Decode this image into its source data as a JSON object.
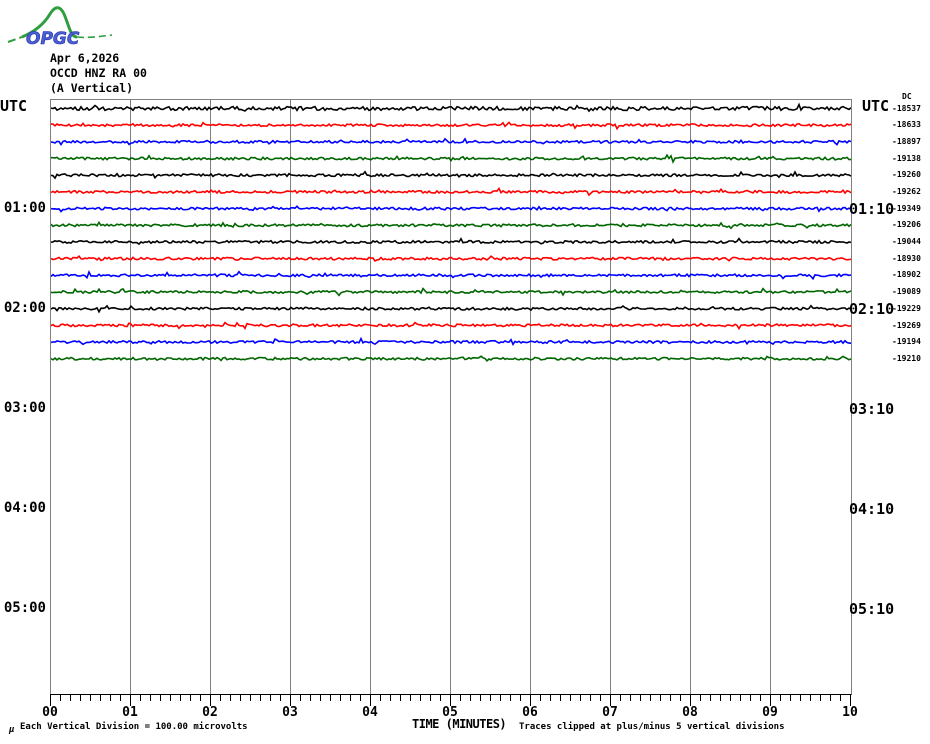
{
  "logo": {
    "text": "OPGC",
    "text_color": "#3a50cc",
    "curve_color": "#2e9e40"
  },
  "header": {
    "date": "Apr 6,2026",
    "station": "OCCD HNZ RA 00",
    "component": "(A Vertical)"
  },
  "left_axis": {
    "header": "UTC",
    "labels": [
      "01:00",
      "02:00",
      "03:00",
      "04:00",
      "05:00"
    ]
  },
  "right_axis": {
    "header": "UTC",
    "dc_label": "DC",
    "labels": [
      "01:10",
      "02:10",
      "03:10",
      "04:10",
      "05:10"
    ],
    "values": [
      "-18537",
      "-18633",
      "-18897",
      "-19138",
      "-19260",
      "-19262",
      "-19349",
      "-19206",
      "-19044",
      "-18930",
      "-18902",
      "-19089",
      "-19229",
      "-19269",
      "-19194",
      "-19210"
    ]
  },
  "x_axis": {
    "title": "TIME (MINUTES)",
    "ticks": [
      "00",
      "01",
      "02",
      "03",
      "04",
      "05",
      "06",
      "07",
      "08",
      "09",
      "10"
    ]
  },
  "footer": {
    "corner_glyph": "µ",
    "left_note": "Each Vertical Division =  100.00 microvolts",
    "right_note": "Traces clipped at plus/minus 5 vertical divisions"
  },
  "chart_data": {
    "type": "line",
    "subtype": "helicorder_seismogram",
    "title": "OCCD HNZ RA 00 (A Vertical)",
    "date": "Apr 6,2026",
    "xlabel": "TIME (MINUTES)",
    "x_ticks": [
      "00",
      "01",
      "02",
      "03",
      "04",
      "05",
      "06",
      "07",
      "08",
      "09",
      "10"
    ],
    "x_range_minutes": [
      0,
      10
    ],
    "minor_ticks_per_minute": 8,
    "minutes_per_row": 10,
    "rows_per_hour": 6,
    "vertical_division_microvolts": 100.0,
    "clip_divisions": 5,
    "grid_on": true,
    "grid_color": "#808080",
    "palette": {
      "black": "#000000",
      "red": "#ff0000",
      "blue": "#0000ff",
      "green": "#006600"
    },
    "left_time_labels": [
      "01:00",
      "02:00",
      "03:00",
      "04:00",
      "05:00"
    ],
    "right_time_labels": [
      "01:10",
      "02:10",
      "03:10",
      "04:10",
      "05:10"
    ],
    "traces": [
      {
        "row": 1,
        "start_utc": "00:00",
        "end_utc": "00:10",
        "color": "black",
        "dc_value": -18537,
        "waveform": "flat background noise"
      },
      {
        "row": 2,
        "start_utc": "00:10",
        "end_utc": "00:20",
        "color": "red",
        "dc_value": -18633,
        "waveform": "flat background noise"
      },
      {
        "row": 3,
        "start_utc": "00:20",
        "end_utc": "00:30",
        "color": "blue",
        "dc_value": -18897,
        "waveform": "flat background noise"
      },
      {
        "row": 4,
        "start_utc": "00:30",
        "end_utc": "00:40",
        "color": "green",
        "dc_value": -19138,
        "waveform": "flat background noise"
      },
      {
        "row": 5,
        "start_utc": "00:40",
        "end_utc": "00:50",
        "color": "black",
        "dc_value": -19260,
        "waveform": "flat background noise"
      },
      {
        "row": 6,
        "start_utc": "00:50",
        "end_utc": "01:00",
        "color": "red",
        "dc_value": -19262,
        "waveform": "flat background noise"
      },
      {
        "row": 7,
        "start_utc": "01:00",
        "end_utc": "01:10",
        "color": "blue",
        "dc_value": -19349,
        "waveform": "flat background noise"
      },
      {
        "row": 8,
        "start_utc": "01:10",
        "end_utc": "01:20",
        "color": "green",
        "dc_value": -19206,
        "waveform": "flat background noise"
      },
      {
        "row": 9,
        "start_utc": "01:20",
        "end_utc": "01:30",
        "color": "black",
        "dc_value": -19044,
        "waveform": "flat background noise"
      },
      {
        "row": 10,
        "start_utc": "01:30",
        "end_utc": "01:40",
        "color": "red",
        "dc_value": -18930,
        "waveform": "flat background noise"
      },
      {
        "row": 11,
        "start_utc": "01:40",
        "end_utc": "01:50",
        "color": "blue",
        "dc_value": -18902,
        "waveform": "flat background noise"
      },
      {
        "row": 12,
        "start_utc": "01:50",
        "end_utc": "02:00",
        "color": "green",
        "dc_value": -19089,
        "waveform": "flat background noise"
      },
      {
        "row": 13,
        "start_utc": "02:00",
        "end_utc": "02:10",
        "color": "black",
        "dc_value": -19229,
        "waveform": "flat background noise"
      },
      {
        "row": 14,
        "start_utc": "02:10",
        "end_utc": "02:20",
        "color": "red",
        "dc_value": -19269,
        "waveform": "flat background noise"
      },
      {
        "row": 15,
        "start_utc": "02:20",
        "end_utc": "02:30",
        "color": "blue",
        "dc_value": -19194,
        "waveform": "flat background noise"
      },
      {
        "row": 16,
        "start_utc": "02:30",
        "end_utc": "02:40",
        "color": "green",
        "dc_value": -19210,
        "waveform": "flat background noise"
      }
    ]
  }
}
